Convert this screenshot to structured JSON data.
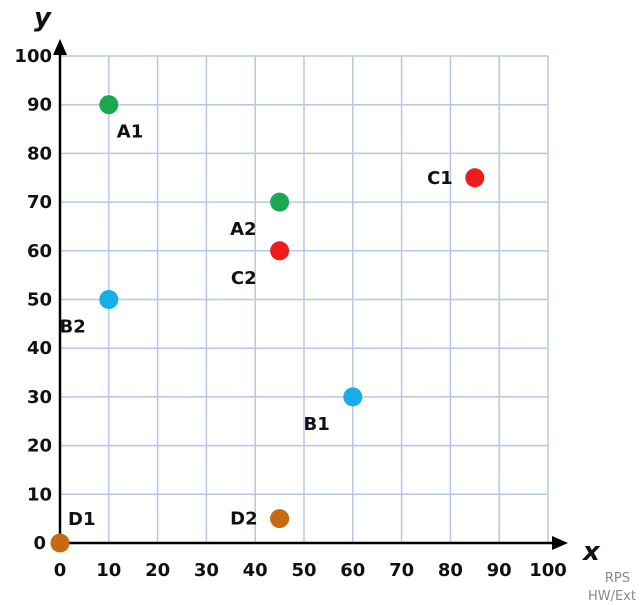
{
  "chart_data": {
    "type": "scatter",
    "title": "",
    "xlabel": "x",
    "ylabel": "y",
    "xlim": [
      0,
      100
    ],
    "ylim": [
      0,
      100
    ],
    "grid": true,
    "xticks": [
      "0",
      "10",
      "20",
      "30",
      "40",
      "50",
      "60",
      "70",
      "80",
      "90",
      "100"
    ],
    "yticks": [
      "0",
      "10",
      "20",
      "30",
      "40",
      "50",
      "60",
      "70",
      "80",
      "90",
      "100"
    ],
    "points": [
      {
        "label": "A1",
        "x": 10,
        "y": 90,
        "color": "#1aa84e",
        "label_pos": "below-right"
      },
      {
        "label": "A2",
        "x": 45,
        "y": 70,
        "color": "#1aa84e",
        "label_pos": "below-left"
      },
      {
        "label": "B1",
        "x": 60,
        "y": 30,
        "color": "#16aee8",
        "label_pos": "below-left"
      },
      {
        "label": "B2",
        "x": 10,
        "y": 50,
        "color": "#16aee8",
        "label_pos": "below-left"
      },
      {
        "label": "C1",
        "x": 85,
        "y": 75,
        "color": "#ee1c1c",
        "label_pos": "left"
      },
      {
        "label": "C2",
        "x": 45,
        "y": 60,
        "color": "#ee1c1c",
        "label_pos": "below-left"
      },
      {
        "label": "D1",
        "x": 0,
        "y": 0,
        "color": "#c86a10",
        "label_pos": "above-right"
      },
      {
        "label": "D2",
        "x": 45,
        "y": 5,
        "color": "#c86a10",
        "label_pos": "left"
      }
    ]
  },
  "footer": {
    "line1": "RPS",
    "line2": "HW/Ext"
  },
  "colors": {
    "grid": "#b5c7e6",
    "axis": "#000000"
  }
}
